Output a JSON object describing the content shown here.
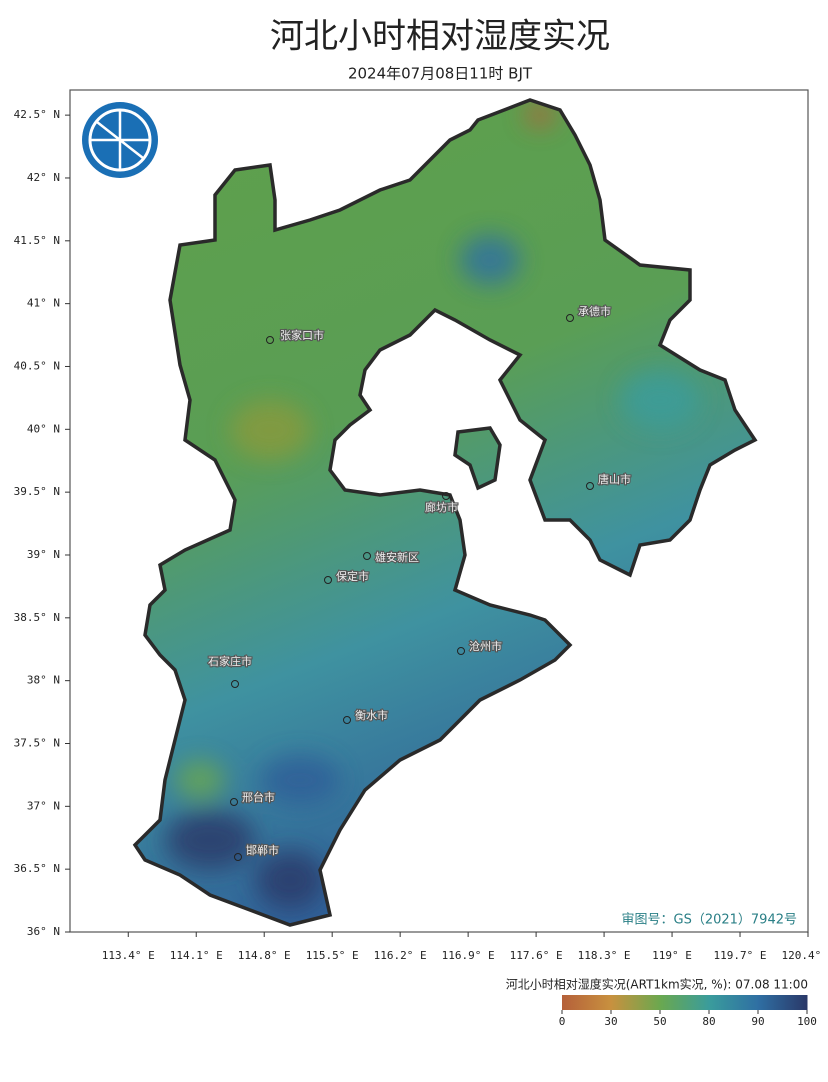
{
  "chart_data": {
    "type": "map",
    "title": "河北小时相对湿度实况",
    "subtitle": "2024年07月08日11时 BJT",
    "xlim": [
      112.8,
      120.4
    ],
    "ylim": [
      36,
      42.7
    ],
    "xticks": [
      {
        "value": 113.4,
        "label": "113.4° E"
      },
      {
        "value": 114.1,
        "label": "114.1° E"
      },
      {
        "value": 114.8,
        "label": "114.8° E"
      },
      {
        "value": 115.5,
        "label": "115.5° E"
      },
      {
        "value": 116.2,
        "label": "116.2° E"
      },
      {
        "value": 116.9,
        "label": "116.9° E"
      },
      {
        "value": 117.6,
        "label": "117.6° E"
      },
      {
        "value": 118.3,
        "label": "118.3° E"
      },
      {
        "value": 119,
        "label": "119° E"
      },
      {
        "value": 119.7,
        "label": "119.7° E"
      },
      {
        "value": 120.4,
        "label": "120.4° E"
      }
    ],
    "yticks": [
      {
        "value": 36,
        "label": "36° N"
      },
      {
        "value": 36.5,
        "label": "36.5° N"
      },
      {
        "value": 37,
        "label": "37° N"
      },
      {
        "value": 37.5,
        "label": "37.5° N"
      },
      {
        "value": 38,
        "label": "38° N"
      },
      {
        "value": 38.5,
        "label": "38.5° N"
      },
      {
        "value": 39,
        "label": "39° N"
      },
      {
        "value": 39.5,
        "label": "39.5° N"
      },
      {
        "value": 40,
        "label": "40° N"
      },
      {
        "value": 40.5,
        "label": "40.5° N"
      },
      {
        "value": 41,
        "label": "41° N"
      },
      {
        "value": 41.5,
        "label": "41.5° N"
      },
      {
        "value": 42,
        "label": "42° N"
      },
      {
        "value": 42.5,
        "label": "42.5° N"
      }
    ],
    "cities": [
      "张家口市",
      "承德市",
      "唐山市",
      "廊坊市",
      "雄安新区",
      "保定市",
      "沧州市",
      "石家庄市",
      "衡水市",
      "邢台市",
      "邯郸市"
    ],
    "annotation": "审图号：GS（2021）7942号",
    "colorbar": {
      "title": "河北小时相对湿度实况(ART1km实况, %): 07.08 11:00",
      "ticks": [
        0,
        30,
        50,
        80,
        90,
        100
      ],
      "colors": [
        "#b5603a",
        "#c8913f",
        "#6aa84f",
        "#3a9c9c",
        "#2f6fa3",
        "#2a3868"
      ]
    }
  }
}
